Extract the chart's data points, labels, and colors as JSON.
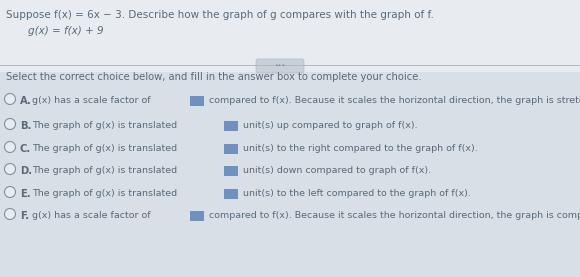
{
  "bg_top": "#e8ecf0",
  "bg_bottom": "#d8dfe6",
  "text_color": "#5a6a7a",
  "title_text": "Suppose f(x) = 6x − 3. Describe how the graph of g compares with the graph of f.",
  "subtitle_text": "g(x) = f(x) + 9",
  "divider_color": "#b0bac4",
  "pill_color": "#c8d0d8",
  "instruction": "Select the correct choice below, and fill in the answer box to complete your choice.",
  "choices": [
    {
      "label": "A.",
      "full_text": "g(x) has a scale factor of [BOX] compared to f(x). Because it scales the horizontal direction, the graph is stretched horizontally."
    },
    {
      "label": "B.",
      "full_text": "The graph of g(x) is translated [BOX] unit(s) up compared to graph of f(x)."
    },
    {
      "label": "C.",
      "full_text": "The graph of g(x) is translated [BOX] unit(s) to the right compared to the graph of f(x)."
    },
    {
      "label": "D.",
      "full_text": "The graph of g(x) is translated [BOX] unit(s) down compared to graph of f(x)."
    },
    {
      "label": "E.",
      "full_text": "The graph of g(x) is translated [BOX] unit(s) to the left compared to the graph of f(x)."
    },
    {
      "label": "F.",
      "full_text": "g(x) has a scale factor of [BOX] compared to f(x). Because it scales the horizontal direction, the graph is compressed horizontally."
    }
  ],
  "box_color": "#7090c0",
  "circle_edge_color": "#8090a0",
  "title_fontsize": 7.5,
  "choice_fontsize": 6.8,
  "instruction_fontsize": 7.2,
  "label_fontsize": 7.2
}
